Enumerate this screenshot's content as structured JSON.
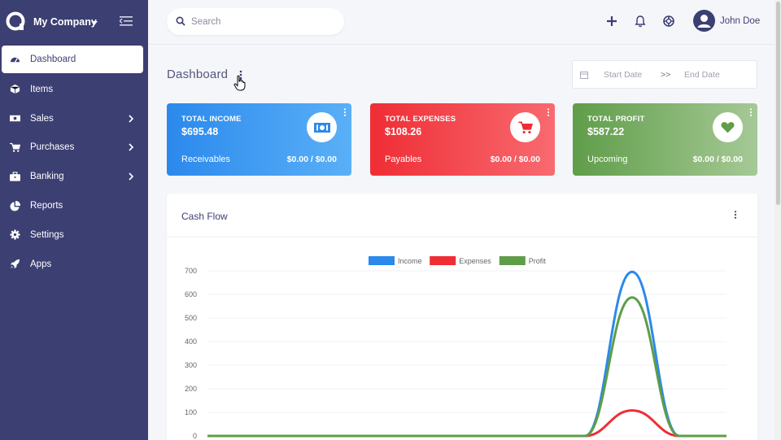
{
  "sidebar": {
    "company": "My Company",
    "items": [
      {
        "label": "Dashboard",
        "icon": "dashboard-icon",
        "has_submenu": false
      },
      {
        "label": "Items",
        "icon": "cube-icon",
        "has_submenu": false
      },
      {
        "label": "Sales",
        "icon": "money-icon",
        "has_submenu": true
      },
      {
        "label": "Purchases",
        "icon": "cart-icon",
        "has_submenu": true
      },
      {
        "label": "Banking",
        "icon": "briefcase-icon",
        "has_submenu": true
      },
      {
        "label": "Reports",
        "icon": "pie-chart-icon",
        "has_submenu": false
      },
      {
        "label": "Settings",
        "icon": "gear-icon",
        "has_submenu": false
      },
      {
        "label": "Apps",
        "icon": "rocket-icon",
        "has_submenu": false
      }
    ]
  },
  "header": {
    "search_placeholder": "Search",
    "user_name": "John Doe"
  },
  "page": {
    "title": "Dashboard",
    "date_start_placeholder": "Start Date",
    "date_separator": ">>",
    "date_end_placeholder": "End Date"
  },
  "cards": {
    "income": {
      "label": "TOTAL INCOME",
      "value": "$695.48",
      "sub_label": "Receivables",
      "sub_value": "$0.00 / $0.00",
      "color": "#2b89ec"
    },
    "expenses": {
      "label": "TOTAL EXPENSES",
      "value": "$108.26",
      "sub_label": "Payables",
      "sub_value": "$0.00 / $0.00",
      "color": "#ef2d35"
    },
    "profit": {
      "label": "TOTAL PROFIT",
      "value": "$587.22",
      "sub_label": "Upcoming",
      "sub_value": "$0.00 / $0.00",
      "color": "#5f9d49"
    }
  },
  "cash_flow": {
    "title": "Cash Flow"
  },
  "chart_data": {
    "type": "line",
    "ylim": [
      0,
      700
    ],
    "yticks": [
      "0",
      "100",
      "200",
      "300",
      "400",
      "500",
      "600",
      "700"
    ],
    "x": [
      0,
      1,
      2,
      3,
      4,
      5,
      6,
      7,
      8,
      9,
      10,
      11
    ],
    "series": [
      {
        "name": "Income",
        "color": "#2b89ec",
        "values": [
          0,
          0,
          0,
          0,
          0,
          0,
          0,
          0,
          0,
          695.48,
          0,
          0
        ]
      },
      {
        "name": "Expenses",
        "color": "#ef2d35",
        "values": [
          0,
          0,
          0,
          0,
          0,
          0,
          0,
          0,
          0,
          108.26,
          0,
          0
        ]
      },
      {
        "name": "Profit",
        "color": "#5f9d49",
        "values": [
          0,
          0,
          0,
          0,
          0,
          0,
          0,
          0,
          0,
          587.22,
          0,
          0
        ]
      }
    ],
    "legend": "top-center",
    "grid": true
  }
}
